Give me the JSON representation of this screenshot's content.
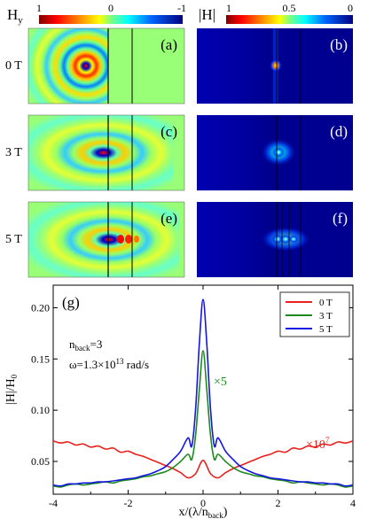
{
  "colorbars": {
    "hy": {
      "label_main": "H",
      "label_sub": "y",
      "ticks": [
        "1",
        "0",
        "-1"
      ]
    },
    "habs": {
      "label": "|H|",
      "ticks": [
        "1",
        "0.5",
        "0"
      ]
    }
  },
  "panels": [
    {
      "letter": "(a)",
      "field": "Hy",
      "row_label": "0 T"
    },
    {
      "letter": "(b)",
      "field": "|H|"
    },
    {
      "letter": "(c)",
      "field": "Hy",
      "row_label": "3 T"
    },
    {
      "letter": "(d)",
      "field": "|H|"
    },
    {
      "letter": "(e)",
      "field": "Hy",
      "row_label": "5 T"
    },
    {
      "letter": "(f)",
      "field": "|H|"
    }
  ],
  "colors": {
    "series_0T": "#e8211c",
    "series_3T": "#1d8a1d",
    "series_5T": "#1515e0"
  },
  "chart_data": {
    "type": "line",
    "panel_label": "(g)",
    "xlabel": {
      "prefix": "x/(λ/n",
      "sub": "back",
      "suffix": ")"
    },
    "ylabel": {
      "main": "|H|/H",
      "sub": "0"
    },
    "xlim": [
      -4,
      4
    ],
    "ylim": [
      0.018,
      0.222
    ],
    "x_ticks": [
      "-4",
      "-2",
      "0",
      "2",
      "4"
    ],
    "y_ticks": [
      {
        "v": 0.05,
        "label": "0.05"
      },
      {
        "v": 0.1,
        "label": "0.10"
      },
      {
        "v": 0.15,
        "label": "0.15"
      },
      {
        "v": 0.2,
        "label": "0.20"
      }
    ],
    "annotations": {
      "nback_main": "n",
      "nback_sub": "back",
      "nback_value": "=3",
      "omega_main": "ω=1.3×10",
      "omega_sup": "13",
      "omega_unit": " rad/s",
      "scale_3T": "×5",
      "scale_0T_main": "×10",
      "scale_0T_sup": "7"
    },
    "legend": {
      "placement": "top-right"
    },
    "series": [
      {
        "name": "0 T",
        "x": [
          -4,
          -3.8,
          -3.6,
          -3.4,
          -3.2,
          -3,
          -2.8,
          -2.6,
          -2.4,
          -2.2,
          -2,
          -1.8,
          -1.6,
          -1.4,
          -1.2,
          -1,
          -0.8,
          -0.6,
          -0.4,
          -0.2,
          0,
          0.2,
          0.4,
          0.6,
          0.8,
          1,
          1.2,
          1.4,
          1.6,
          1.8,
          2,
          2.2,
          2.4,
          2.6,
          2.8,
          3,
          3.2,
          3.4,
          3.6,
          3.8,
          4
        ],
        "values": [
          0.07,
          0.068,
          0.069,
          0.066,
          0.067,
          0.064,
          0.065,
          0.062,
          0.063,
          0.059,
          0.06,
          0.057,
          0.055,
          0.052,
          0.049,
          0.046,
          0.043,
          0.039,
          0.034,
          0.038,
          0.051,
          0.038,
          0.034,
          0.039,
          0.043,
          0.046,
          0.049,
          0.052,
          0.055,
          0.057,
          0.06,
          0.059,
          0.063,
          0.062,
          0.065,
          0.064,
          0.067,
          0.066,
          0.069,
          0.068,
          0.07
        ]
      },
      {
        "name": "3 T",
        "x": [
          -4,
          -3.8,
          -3.6,
          -3.4,
          -3.2,
          -3,
          -2.8,
          -2.6,
          -2.4,
          -2.2,
          -2,
          -1.8,
          -1.6,
          -1.4,
          -1.2,
          -1,
          -0.8,
          -0.6,
          -0.4,
          -0.3,
          -0.2,
          -0.1,
          0,
          0.1,
          0.2,
          0.3,
          0.4,
          0.6,
          0.8,
          1,
          1.2,
          1.4,
          1.6,
          1.8,
          2,
          2.2,
          2.4,
          2.6,
          2.8,
          3,
          3.2,
          3.4,
          3.6,
          3.8,
          4
        ],
        "values": [
          0.026,
          0.025,
          0.027,
          0.028,
          0.027,
          0.028,
          0.029,
          0.03,
          0.029,
          0.031,
          0.032,
          0.033,
          0.035,
          0.036,
          0.038,
          0.04,
          0.044,
          0.05,
          0.057,
          0.052,
          0.075,
          0.12,
          0.158,
          0.12,
          0.075,
          0.052,
          0.057,
          0.05,
          0.044,
          0.04,
          0.038,
          0.036,
          0.035,
          0.033,
          0.032,
          0.031,
          0.029,
          0.03,
          0.029,
          0.028,
          0.027,
          0.028,
          0.027,
          0.025,
          0.026
        ]
      },
      {
        "name": "5 T",
        "x": [
          -4,
          -3.8,
          -3.6,
          -3.4,
          -3.2,
          -3,
          -2.8,
          -2.6,
          -2.4,
          -2.2,
          -2,
          -1.8,
          -1.6,
          -1.4,
          -1.2,
          -1,
          -0.8,
          -0.6,
          -0.4,
          -0.3,
          -0.2,
          -0.1,
          0,
          0.1,
          0.2,
          0.3,
          0.4,
          0.6,
          0.8,
          1,
          1.2,
          1.4,
          1.6,
          1.8,
          2,
          2.2,
          2.4,
          2.6,
          2.8,
          3,
          3.2,
          3.4,
          3.6,
          3.8,
          4
        ],
        "values": [
          0.027,
          0.026,
          0.028,
          0.028,
          0.029,
          0.029,
          0.03,
          0.03,
          0.031,
          0.032,
          0.033,
          0.034,
          0.036,
          0.038,
          0.041,
          0.045,
          0.052,
          0.06,
          0.073,
          0.065,
          0.1,
          0.165,
          0.208,
          0.165,
          0.1,
          0.065,
          0.073,
          0.06,
          0.052,
          0.045,
          0.041,
          0.038,
          0.036,
          0.034,
          0.033,
          0.032,
          0.031,
          0.03,
          0.03,
          0.029,
          0.029,
          0.028,
          0.028,
          0.026,
          0.027
        ]
      }
    ]
  }
}
